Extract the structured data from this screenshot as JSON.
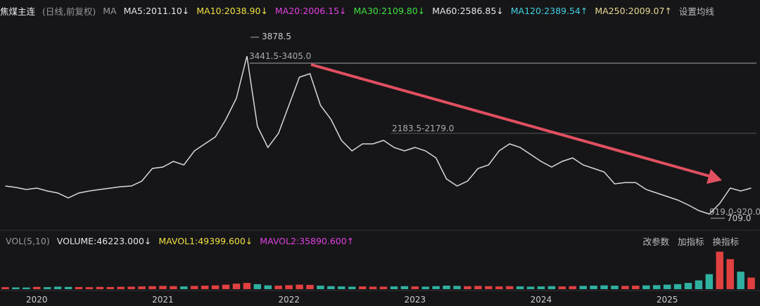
{
  "header": {
    "title": "焦煤主连",
    "subtitle": "(日线,前复权)",
    "ma_label": "MA",
    "indicators": [
      {
        "text": "MA5:2011.10↓",
        "color": "#e6e6e6"
      },
      {
        "text": "MA10:2038.90↓",
        "color": "#f0e040"
      },
      {
        "text": "MA20:2006.15↓",
        "color": "#e040e0"
      },
      {
        "text": "MA30:2109.80↓",
        "color": "#40e040"
      },
      {
        "text": "MA60:2586.85↓",
        "color": "#e6e6e6"
      },
      {
        "text": "MA120:2389.54↑",
        "color": "#40d0e0"
      },
      {
        "text": "MA250:2009.07↑",
        "color": "#e8d890"
      }
    ],
    "settings": "设置均线"
  },
  "volume_header": {
    "label": "VOL(5,10)",
    "indicators": [
      {
        "text": "VOLUME:46223.000↓",
        "color": "#e6e6e6"
      },
      {
        "text": "MAVOL1:49399.600↓",
        "color": "#f0e040"
      },
      {
        "text": "MAVOL2:35890.600↑",
        "color": "#e040e0"
      }
    ],
    "buttons": [
      "改参数",
      "加指标",
      "换指标"
    ]
  },
  "chart_data": [
    {
      "type": "line",
      "color": "#d8d8d8",
      "categories": [
        null,
        null,
        null,
        "2020",
        null,
        null,
        null,
        null,
        null,
        null,
        null,
        null,
        null,
        null,
        null,
        "2021",
        null,
        null,
        null,
        null,
        null,
        null,
        null,
        null,
        null,
        null,
        null,
        "2022",
        null,
        null,
        null,
        null,
        null,
        null,
        null,
        null,
        null,
        null,
        null,
        "2023",
        null,
        null,
        null,
        null,
        null,
        null,
        null,
        null,
        null,
        null,
        null,
        "2024",
        null,
        null,
        null,
        null,
        null,
        null,
        null,
        null,
        null,
        null,
        null,
        "2025",
        null,
        null,
        null,
        null,
        null,
        null,
        null,
        null
      ],
      "values": [
        1240,
        1214,
        1177,
        1202,
        1151,
        1114,
        1026,
        1114,
        1151,
        1177,
        1202,
        1227,
        1240,
        1328,
        1554,
        1579,
        1680,
        1617,
        1869,
        1994,
        2120,
        2435,
        2812,
        3567,
        2309,
        1931,
        2183,
        2686,
        3189,
        3252,
        2686,
        2435,
        2057,
        1869,
        1994,
        1994,
        2057,
        1931,
        1869,
        1931,
        1869,
        1743,
        1365,
        1240,
        1328,
        1554,
        1617,
        1869,
        1994,
        1931,
        1806,
        1680,
        1579,
        1680,
        1743,
        1617,
        1554,
        1491,
        1277,
        1302,
        1302,
        1177,
        1114,
        1051,
        988,
        900,
        799,
        736,
        925,
        1202,
        1151,
        1202
      ],
      "ylim": [
        485,
        4196
      ],
      "annotations": [
        "3878.5",
        "3441.5-3405.0",
        "2183.5-2179.0",
        "919.0-920.0",
        "709.0"
      ]
    },
    {
      "type": "bar",
      "up_color": "#e04040",
      "down_color": "#30b0a0",
      "values": [
        8000,
        7000,
        6500,
        9000,
        8000,
        10000,
        9000,
        8500,
        8000,
        9000,
        8500,
        9500,
        10000,
        11000,
        12000,
        13000,
        12000,
        11000,
        13000,
        14000,
        15000,
        18000,
        22000,
        25000,
        20000,
        15000,
        14000,
        16000,
        18000,
        17000,
        14000,
        12000,
        11000,
        10000,
        11000,
        10000,
        10000,
        11000,
        12000,
        11000,
        10000,
        12000,
        14000,
        13000,
        12000,
        13000,
        12000,
        11000,
        12000,
        11000,
        10000,
        11000,
        12000,
        11000,
        12000,
        13000,
        14000,
        15000,
        14000,
        13000,
        14000,
        15000,
        16000,
        18000,
        20000,
        25000,
        35000,
        60000,
        150000,
        120000,
        70000,
        46223
      ],
      "ylim": [
        0,
        160000
      ]
    }
  ]
}
